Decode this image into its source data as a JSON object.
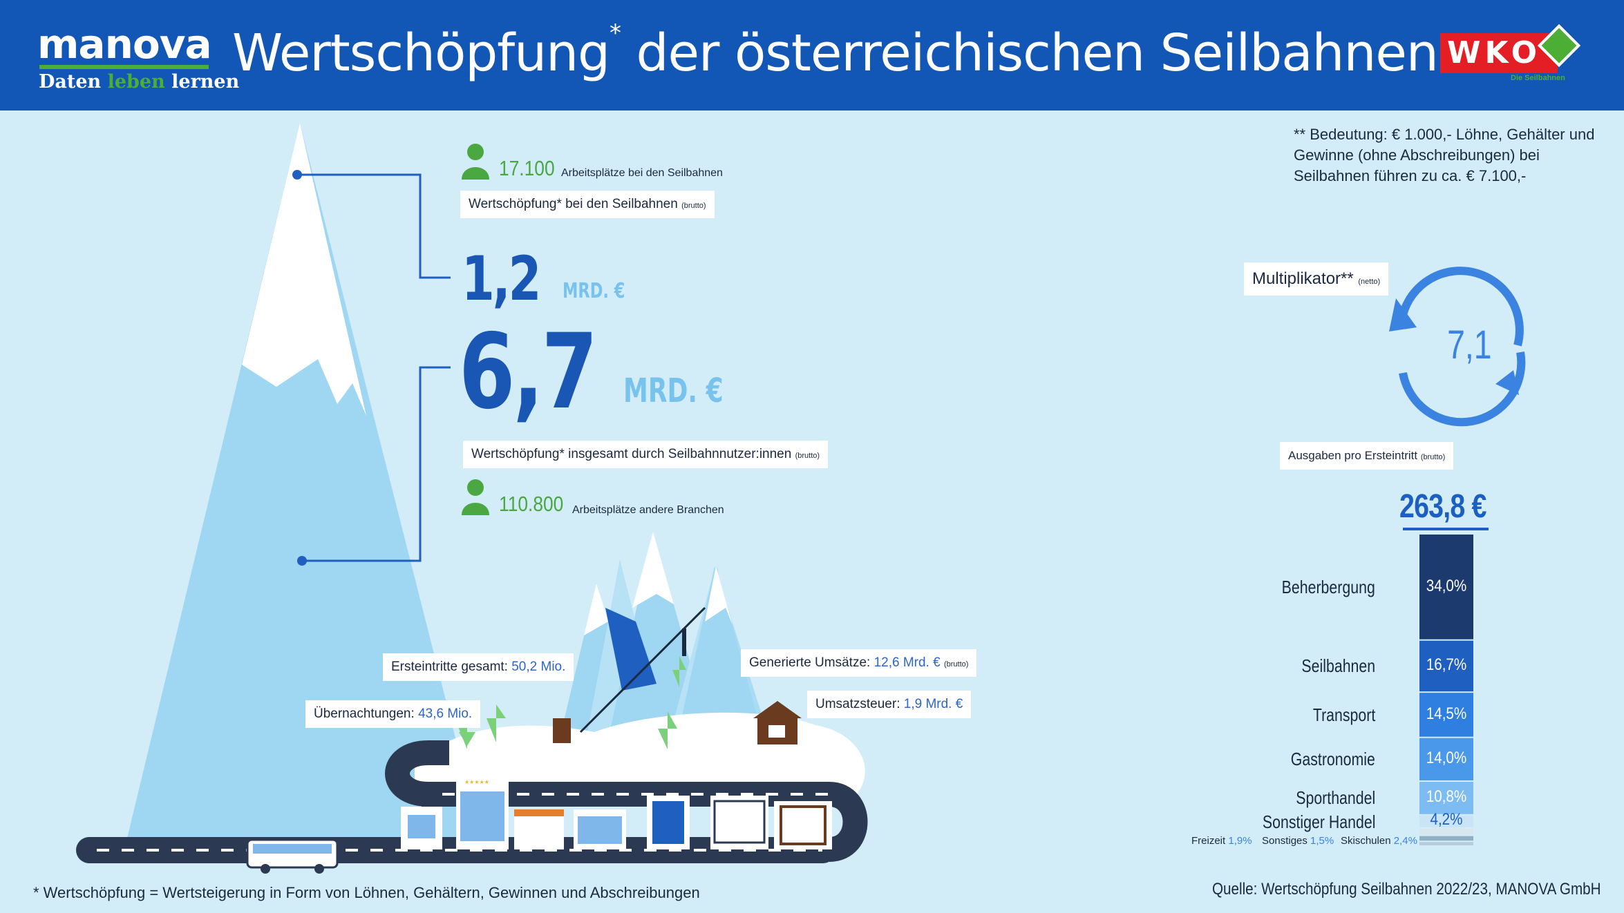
{
  "header": {
    "logo_name": "manova",
    "logo_tagline_a": "Daten",
    "logo_tagline_b": "leben",
    "logo_tagline_c": "lernen",
    "title_a": "Wertschöpfung",
    "title_star": "*",
    "title_b": "der österreichischen Seilbahnen",
    "wko": "WKO",
    "wko_sub": "Die Seilbahnen"
  },
  "colors": {
    "header_bg": "#1357b6",
    "background": "#d2ecf8",
    "accent_green": "#4aa742",
    "value_blue": "#1a57b4",
    "unit_lightblue": "#78c2ee"
  },
  "jobs": {
    "seilbahn_count": "17.100",
    "seilbahn_label": "Arbeitsplätze bei den Seilbahnen",
    "other_count": "110.800",
    "other_label": "Arbeitsplätze andere Branchen"
  },
  "direct": {
    "label": "Wertschöpfung* bei den Seilbahnen",
    "label_small": "(brutto)",
    "value": "1,2",
    "unit": "MRD. €"
  },
  "total": {
    "label": "Wertschöpfung* insgesamt durch Seilbahnnutzer:innen",
    "label_small": "(brutto)",
    "value": "6,7",
    "unit": "MRD. €"
  },
  "scene_labels": {
    "ersteintritte_label": "Ersteintritte gesamt:",
    "ersteintritte_value": "50,2 Mio.",
    "uebernachtungen_label": "Übernachtungen:",
    "uebernachtungen_value": "43,6 Mio.",
    "umsaetze_label": "Generierte Umsätze:",
    "umsaetze_value": "12,6 Mrd. €",
    "umsaetze_small": "(brutto)",
    "umsatzsteuer_label": "Umsatzsteuer:",
    "umsatzsteuer_value": "1,9 Mrd. €",
    "hotel_stars": "★★★★★"
  },
  "multiplier": {
    "note": "** Bedeutung: € 1.000,- Löhne, Gehälter und Gewinne (ohne Abschreibungen) bei Seilbahnen führen zu ca. € 7.100,-",
    "label": "Multiplikator**",
    "label_small": "(netto)",
    "value": "7,1"
  },
  "spending": {
    "label": "Ausgaben pro Ersteintritt",
    "label_small": "(brutto)",
    "total": "263,8 €"
  },
  "chart_data": {
    "type": "bar",
    "title": "Ausgaben pro Ersteintritt (brutto)",
    "total_label": "263,8 €",
    "categories": [
      "Beherbergung",
      "Seilbahnen",
      "Transport",
      "Gastronomie",
      "Sporthandel",
      "Sonstiger Handel",
      "Freizeit",
      "Sonstiges",
      "Skischulen"
    ],
    "values": [
      34.0,
      16.7,
      14.5,
      14.0,
      10.8,
      4.2,
      1.9,
      1.5,
      2.4
    ],
    "value_labels": [
      "34,0%",
      "16,7%",
      "14,5%",
      "14,0%",
      "10,8%",
      "4,2%",
      "1,9%",
      "1,5%",
      "2,4%"
    ],
    "unit": "%",
    "colors": [
      "#1c3a6e",
      "#1e5fc0",
      "#2f7fe0",
      "#4a98ea",
      "#7cbcf2",
      "#c9e3f7",
      "#8fb0c4",
      "#b6cdd9",
      "#d8e6ee"
    ]
  },
  "footer": {
    "footnote": "* Wertschöpfung = Wertsteigerung in Form von Löhnen, Gehältern, Gewinnen und Abschreibungen",
    "source": "Quelle: Wertschöpfung Seilbahnen 2022/23, MANOVA GmbH"
  }
}
